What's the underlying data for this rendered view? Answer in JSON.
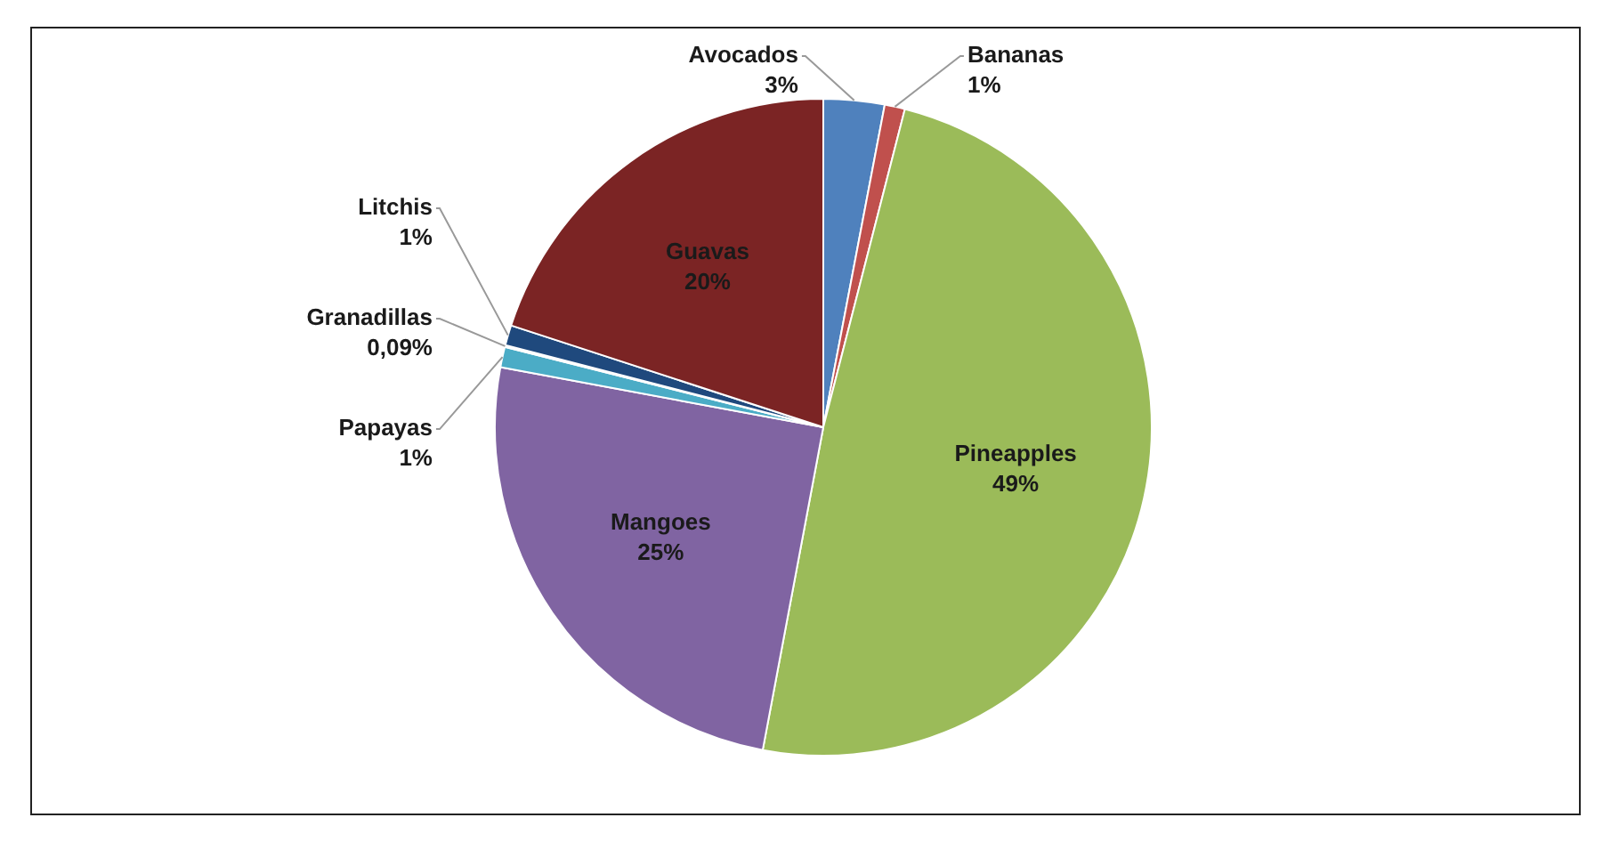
{
  "chart_data": {
    "type": "pie",
    "categories": [
      "Avocados",
      "Bananas",
      "Pineapples",
      "Mangoes",
      "Papayas",
      "Granadillas",
      "Litchis",
      "Guavas"
    ],
    "values": [
      3,
      1,
      49,
      25,
      1,
      0.09,
      1,
      20
    ],
    "value_labels": [
      "3%",
      "1%",
      "49%",
      "25%",
      "1%",
      "0,09%",
      "1%",
      "20%"
    ],
    "colors": [
      "#4f81bd",
      "#c0504d",
      "#9bbb59",
      "#8064a2",
      "#4bacc6",
      "#f79646",
      "#1f497d",
      "#7b2424"
    ]
  }
}
